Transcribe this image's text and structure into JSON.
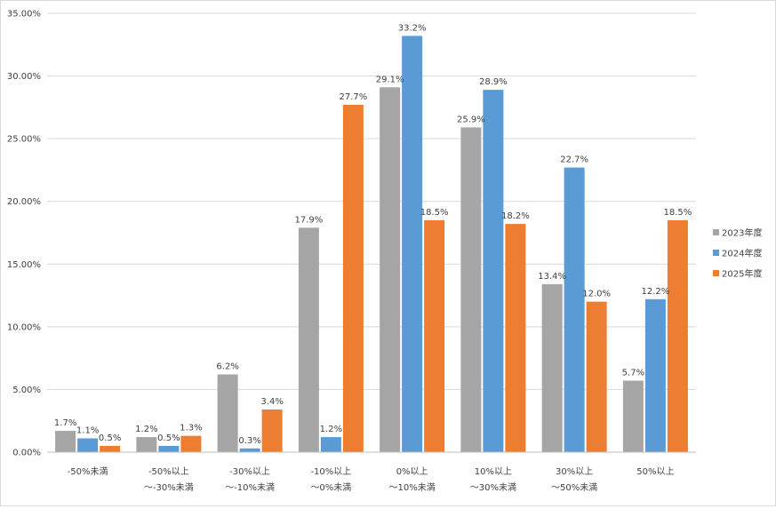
{
  "chart_data": {
    "type": "bar",
    "categories": [
      [
        "-50%未満"
      ],
      [
        "-50%以上",
        "〜-30%未満"
      ],
      [
        "-30%以上",
        "〜-10%未満"
      ],
      [
        "-10%以上",
        "〜0%未満"
      ],
      [
        "0%以上",
        "〜10%未満"
      ],
      [
        "10%以上",
        "〜30%未満"
      ],
      [
        "30%以上",
        "〜50%未満"
      ],
      [
        "50%以上"
      ]
    ],
    "series": [
      {
        "name": "2023年度",
        "color": "#a5a5a5",
        "values": [
          1.7,
          1.2,
          6.2,
          17.9,
          29.1,
          25.9,
          13.4,
          5.7
        ],
        "labels": [
          "1.7%",
          "1.2%",
          "6.2%",
          "17.9%",
          "29.1%",
          "25.9%",
          "13.4%",
          "5.7%"
        ]
      },
      {
        "name": "2024年度",
        "color": "#5b9bd5",
        "values": [
          1.1,
          0.5,
          0.3,
          1.2,
          33.2,
          28.9,
          22.7,
          12.2
        ],
        "labels": [
          "1.1%",
          "0.5%",
          "0.3%",
          "1.2%",
          "33.2%",
          "28.9%",
          "22.7%",
          "12.2%"
        ]
      },
      {
        "name": "2025年度",
        "color": "#ed7d31",
        "values": [
          0.5,
          1.3,
          3.4,
          27.7,
          18.5,
          18.2,
          12.0,
          18.5
        ],
        "labels": [
          "0.5%",
          "1.3%",
          "3.4%",
          "27.7%",
          "18.5%",
          "18.2%",
          "12.0%",
          "18.5%"
        ]
      }
    ],
    "yticks": [
      "0.00%",
      "5.00%",
      "10.00%",
      "15.00%",
      "20.00%",
      "25.00%",
      "30.00%",
      "35.00%"
    ],
    "ylim": [
      0,
      35
    ],
    "grid": true,
    "legend": "right"
  }
}
